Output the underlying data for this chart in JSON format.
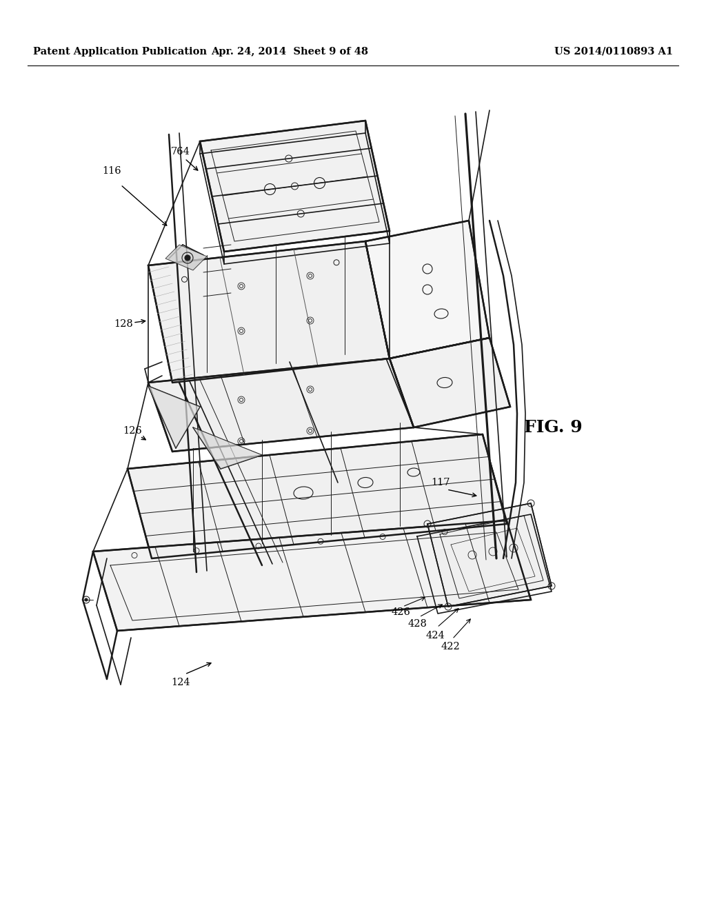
{
  "background_color": "#ffffff",
  "header_left": "Patent Application Publication",
  "header_center": "Apr. 24, 2014  Sheet 9 of 48",
  "header_right": "US 2014/0110893 A1",
  "fig_label": "FIG. 9",
  "header_fontsize": 10.5,
  "annotation_fontsize": 10.5,
  "fig_label_fontsize": 18
}
